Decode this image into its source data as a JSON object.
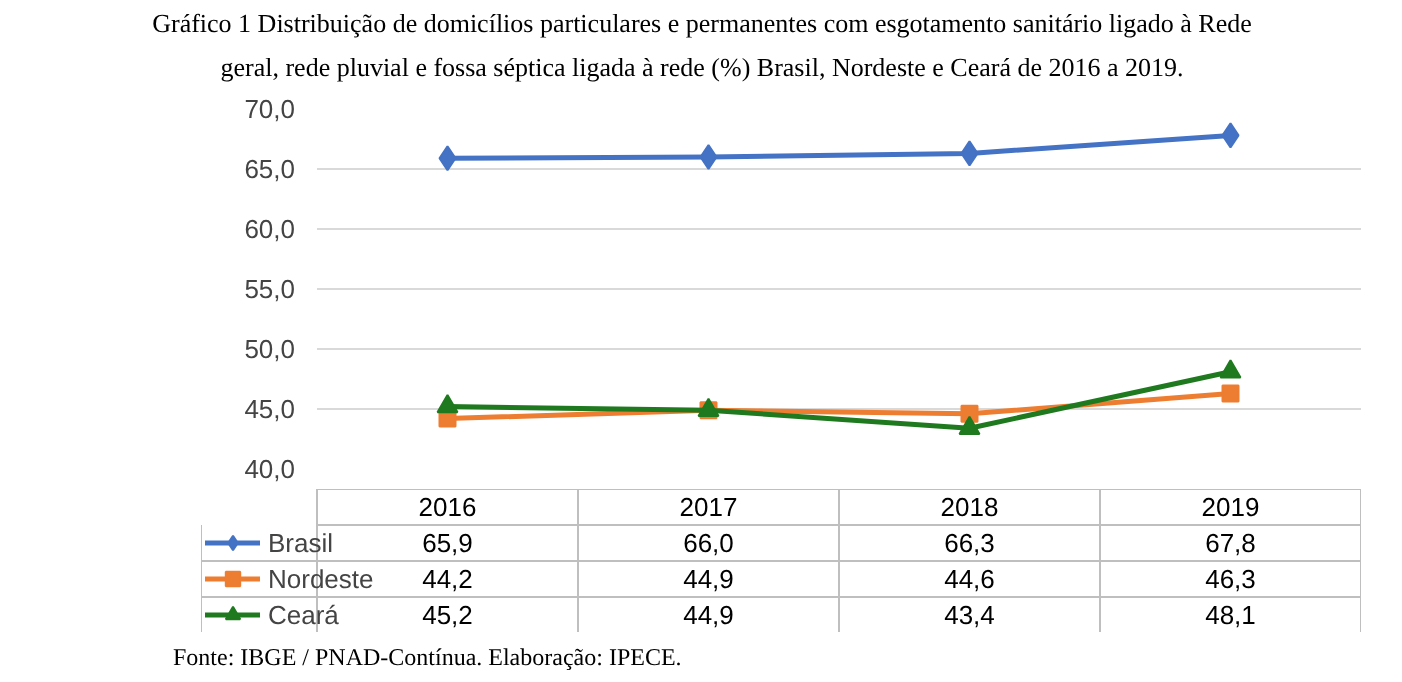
{
  "chart_data": {
    "type": "line",
    "title": "Gráfico 1 Distribuição de domicílios particulares e permanentes com esgotamento sanitário ligado à Rede geral, rede pluvial e fossa séptica ligada à rede (%) Brasil, Nordeste e Ceará de 2016 a 2019.",
    "categories": [
      "2016",
      "2017",
      "2018",
      "2019"
    ],
    "series": [
      {
        "name": "Brasil",
        "color": "#4472c4",
        "marker": "diamond",
        "values": [
          65.9,
          66.0,
          66.3,
          67.8
        ],
        "value_labels": [
          "65,9",
          "66,0",
          "66,3",
          "67,8"
        ]
      },
      {
        "name": "Nordeste",
        "color": "#ed7d31",
        "marker": "square",
        "values": [
          44.2,
          44.9,
          44.6,
          46.3
        ],
        "value_labels": [
          "44,2",
          "44,9",
          "44,6",
          "46,3"
        ]
      },
      {
        "name": "Ceará",
        "color": "#1f7a1f",
        "marker": "triangle",
        "values": [
          45.2,
          44.9,
          43.4,
          48.1
        ],
        "value_labels": [
          "45,2",
          "44,9",
          "43,4",
          "48,1"
        ]
      }
    ],
    "ylim": [
      40,
      70
    ],
    "yticks": [
      {
        "value": 40,
        "label": "40,0"
      },
      {
        "value": 45,
        "label": "45,0"
      },
      {
        "value": 50,
        "label": "50,0"
      },
      {
        "value": 55,
        "label": "55,0"
      },
      {
        "value": 60,
        "label": "60,0"
      },
      {
        "value": 65,
        "label": "65,0"
      },
      {
        "value": 70,
        "label": "70,0"
      }
    ],
    "grid": "y",
    "legend": "bottom",
    "annotations": [
      "Fonte: IBGE / PNAD-Contínua. Elaboração: IPECE."
    ]
  }
}
